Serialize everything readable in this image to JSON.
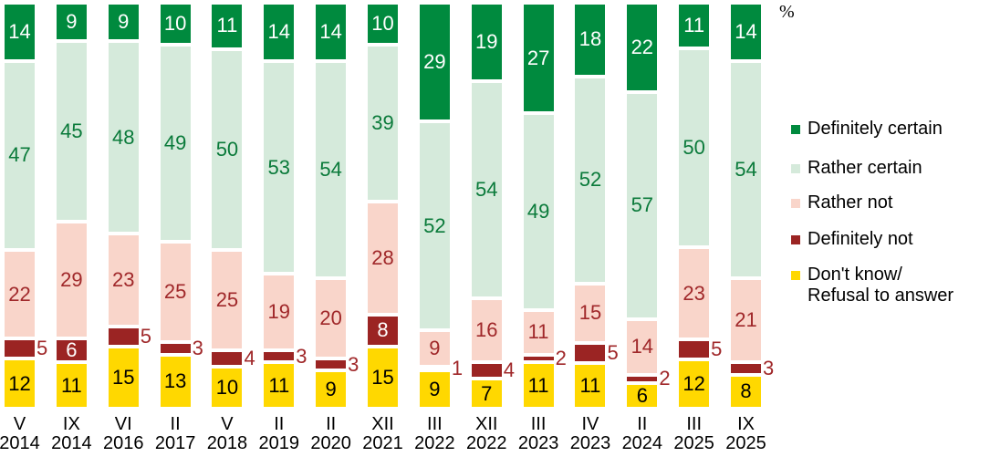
{
  "chart_data": {
    "type": "bar",
    "stacked": true,
    "orientation": "vertical",
    "unit_label": "%",
    "title": "",
    "xlabel": "",
    "ylabel": "",
    "ylim": [
      0,
      100
    ],
    "grid": false,
    "legend_position": "right",
    "categories": [
      {
        "month": "V",
        "year": "2014"
      },
      {
        "month": "IX",
        "year": "2014"
      },
      {
        "month": "VI",
        "year": "2016"
      },
      {
        "month": "II",
        "year": "2017"
      },
      {
        "month": "V",
        "year": "2018"
      },
      {
        "month": "II",
        "year": "2019"
      },
      {
        "month": "II",
        "year": "2020"
      },
      {
        "month": "XII",
        "year": "2021"
      },
      {
        "month": "III",
        "year": "2022"
      },
      {
        "month": "XII",
        "year": "2022"
      },
      {
        "month": "III",
        "year": "2023"
      },
      {
        "month": "IV",
        "year": "2023"
      },
      {
        "month": "II",
        "year": "2024"
      },
      {
        "month": "III",
        "year": "2025"
      },
      {
        "month": "IX",
        "year": "2025"
      }
    ],
    "series": [
      {
        "name": "Definitely certain",
        "color": "#008a3e",
        "values": [
          14,
          9,
          9,
          10,
          11,
          14,
          14,
          10,
          29,
          19,
          27,
          18,
          22,
          11,
          14
        ]
      },
      {
        "name": "Rather certain",
        "color": "#d5eadb",
        "values": [
          47,
          45,
          48,
          49,
          50,
          53,
          54,
          39,
          52,
          54,
          49,
          52,
          57,
          50,
          54
        ]
      },
      {
        "name": "Rather not",
        "color": "#f9d5ca",
        "values": [
          22,
          29,
          23,
          25,
          25,
          19,
          20,
          28,
          9,
          16,
          11,
          15,
          14,
          23,
          21
        ]
      },
      {
        "name": "Definitely not",
        "color": "#9b2423",
        "values": [
          5,
          6,
          5,
          3,
          4,
          3,
          3,
          8,
          1,
          4,
          2,
          5,
          2,
          5,
          3
        ]
      },
      {
        "name": "Don't know/\nRefusal to answer",
        "color": "#ffd800",
        "values": [
          12,
          11,
          15,
          13,
          10,
          11,
          9,
          15,
          9,
          7,
          11,
          11,
          6,
          12,
          8
        ]
      }
    ]
  }
}
